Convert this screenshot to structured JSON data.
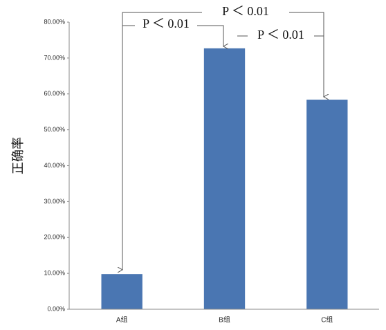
{
  "chart_data": {
    "type": "bar",
    "y_label": "正确率",
    "categories": [
      "A组",
      "B组",
      "C组"
    ],
    "values": [
      9.8,
      72.7,
      58.4
    ],
    "color": "#4a76b2",
    "ylim": [
      0,
      80
    ],
    "yticks": [
      {
        "value": 0,
        "label": "0.00%"
      },
      {
        "value": 10,
        "label": "10.00%"
      },
      {
        "value": 20,
        "label": "20.00%"
      },
      {
        "value": 30,
        "label": "30.00%"
      },
      {
        "value": 40,
        "label": "40.00%"
      },
      {
        "value": 50,
        "label": "50.00%"
      },
      {
        "value": 60,
        "label": "60.00%"
      },
      {
        "value": 70,
        "label": "70.00%"
      },
      {
        "value": 80,
        "label": "80.00%"
      }
    ],
    "annotations": [
      "P ＜ 0.01",
      "P ＜ 0.01",
      "P ＜ 0.01"
    ],
    "grid": false
  }
}
